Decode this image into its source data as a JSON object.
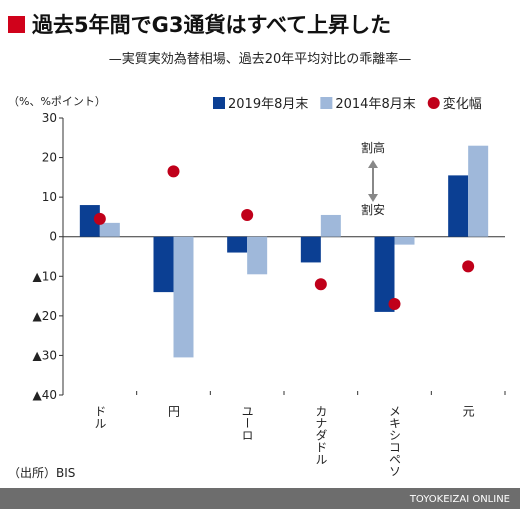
{
  "chart_data": {
    "type": "bar",
    "title": "過去5年間でG3通貨はすべて上昇した",
    "subtitle": "—実質実効為替相場、過去20年平均対比の乖離率—",
    "y_label": "（%、%ポイント）",
    "categories": [
      "ドル",
      "円",
      "ユーロ",
      "カナダドル",
      "メキシコペソ",
      "元"
    ],
    "series": [
      {
        "name": "2019年8月末",
        "color": "#0b3f93",
        "kind": "bar",
        "values": [
          8,
          -14,
          -4,
          -6.5,
          -19,
          15.5
        ]
      },
      {
        "name": "2014年8月末",
        "color": "#9fb8da",
        "kind": "bar",
        "values": [
          3.5,
          -30.5,
          -9.5,
          5.5,
          -2,
          23
        ]
      },
      {
        "name": "変化幅",
        "color": "#c0001a",
        "kind": "dot",
        "values": [
          4.5,
          16.5,
          5.5,
          -12,
          -17,
          -7.5
        ]
      }
    ],
    "ylim": [
      -40,
      30
    ],
    "yticks": [
      {
        "value": -40,
        "label": "▲40"
      },
      {
        "value": -30,
        "label": "▲30"
      },
      {
        "value": -20,
        "label": "▲20"
      },
      {
        "value": -10,
        "label": "▲10"
      },
      0,
      10,
      20,
      30
    ],
    "grid": false,
    "annotations": [
      "割高",
      "割安"
    ],
    "source": "（出所）BIS",
    "footer": "TOYOKEIZAI ONLINE"
  }
}
